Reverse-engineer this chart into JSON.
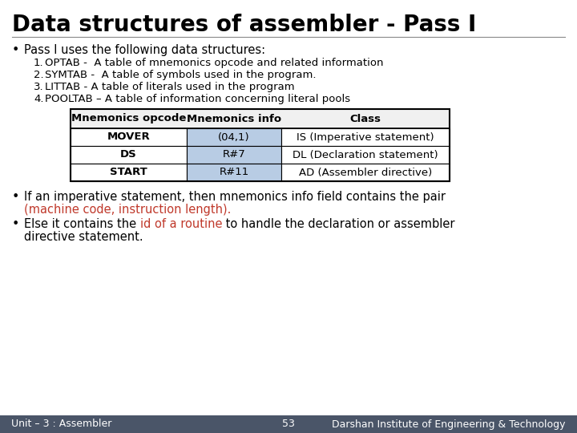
{
  "title": "Data structures of assembler - Pass I",
  "title_fontsize": 20,
  "bg_color": "#ffffff",
  "bullet1": "Pass I uses the following data structures:",
  "items": [
    "OPTAB -  A table of mnemonics opcode and related information",
    "SYMTAB -  A table of symbols used in the program.",
    "LITTAB - A table of literals used in the program",
    "POOLTAB – A table of information concerning literal pools"
  ],
  "table_headers": [
    "Mnemonics opcode",
    "Mnemonics info",
    "Class"
  ],
  "table_rows": [
    [
      "MOVER",
      "(04,1)",
      "IS (Imperative statement)"
    ],
    [
      "DS",
      "R#7",
      "DL (Declaration statement)"
    ],
    [
      "START",
      "R#11",
      "AD (Assembler directive)"
    ]
  ],
  "col2_bg": "#b8cce4",
  "header_bg": "#f0f0f0",
  "table_border": "#000000",
  "bullet2_black": "If an imperative statement, then mnemonics info field contains the pair",
  "bullet2_red": "(machine code, instruction length).",
  "bullet3_black1": "Else it contains the ",
  "bullet3_red": "id of a routine",
  "bullet3_black2": " to handle the declaration or assembler",
  "bullet3_line2": "directive statement.",
  "footer_left": "Unit – 3 : Assembler",
  "footer_center": "53",
  "footer_right": "Darshan Institute of Engineering & Technology",
  "footer_bg": "#4a5568",
  "footer_fg": "#ffffff",
  "red_color": "#c0392b",
  "text_color": "#000000",
  "body_fontsize": 10.5,
  "table_fontsize": 9.5,
  "footer_fontsize": 9.0
}
